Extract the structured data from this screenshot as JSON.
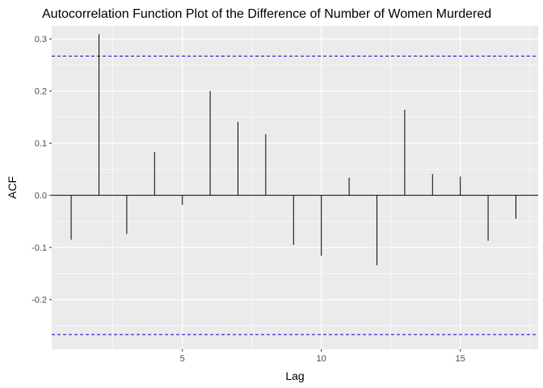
{
  "chart_data": {
    "type": "bar",
    "title": "Autocorrelation Function Plot of the Difference of Number of Women Murdered",
    "xlabel": "Lag",
    "ylabel": "ACF",
    "xlim": [
      0.3,
      17.8
    ],
    "ylim": [
      -0.295,
      0.325
    ],
    "x_ticks": [
      5,
      10,
      15
    ],
    "y_ticks": [
      -0.2,
      -0.1,
      0.0,
      0.1,
      0.2,
      0.3
    ],
    "y_tick_labels": [
      "-0.2",
      "-0.1",
      "0.0",
      "0.1",
      "0.2",
      "0.3"
    ],
    "x_tick_labels": [
      "5",
      "10",
      "15"
    ],
    "x": [
      1,
      2,
      3,
      4,
      5,
      6,
      7,
      8,
      9,
      10,
      11,
      12,
      13,
      14,
      15,
      16,
      17
    ],
    "values": [
      -0.085,
      0.309,
      -0.074,
      0.083,
      -0.018,
      0.2,
      0.141,
      0.117,
      -0.095,
      -0.116,
      0.034,
      -0.134,
      0.164,
      0.041,
      0.036,
      -0.087,
      -0.045
    ],
    "confidence_bounds": [
      0.267,
      -0.267
    ],
    "colors": {
      "panel_background": "#ebebeb",
      "grid_major": "#ffffff",
      "bars": "#000000",
      "zero_line": "#000000",
      "bounds": "#0000cc"
    },
    "grid": true
  }
}
